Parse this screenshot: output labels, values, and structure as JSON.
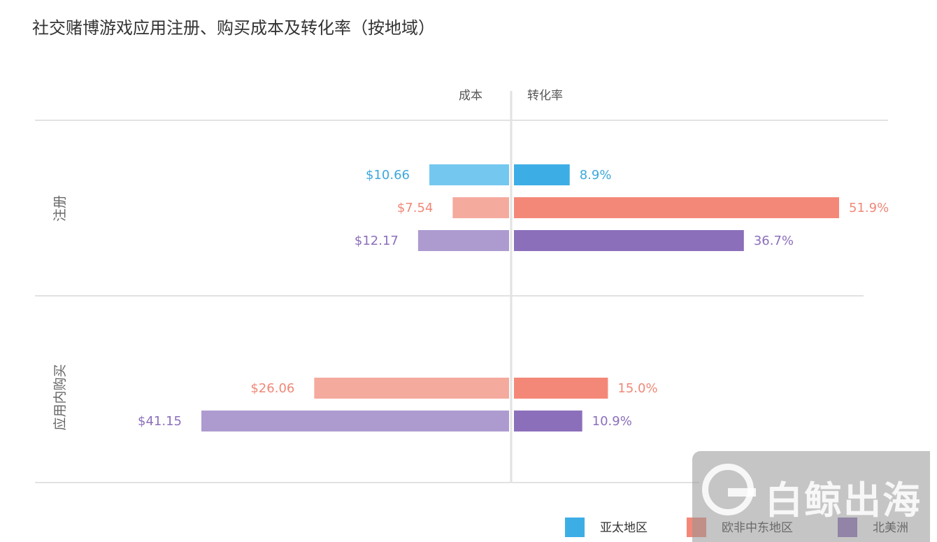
{
  "chart_data": {
    "type": "bar",
    "title": "社交赌博游戏应用注册、购买成本及转化率（按地域）",
    "left_header": "成本",
    "right_header": "转化率",
    "groups": [
      {
        "name": "注册",
        "bars": [
          {
            "region": "亚太地区",
            "cost": 10.66,
            "cost_label": "$10.66",
            "rate": 8.9,
            "rate_label": "8.9%"
          },
          {
            "region": "欧非中东地区",
            "cost": 7.54,
            "cost_label": "$7.54",
            "rate": 51.9,
            "rate_label": "51.9%"
          },
          {
            "region": "北美洲",
            "cost": 12.17,
            "cost_label": "$12.17",
            "rate": 36.7,
            "rate_label": "36.7%"
          }
        ]
      },
      {
        "name": "应用内购买",
        "bars": [
          {
            "region": "欧非中东地区",
            "cost": 26.06,
            "cost_label": "$26.06",
            "rate": 15.0,
            "rate_label": "15.0%"
          },
          {
            "region": "北美洲",
            "cost": 41.15,
            "cost_label": "$41.15",
            "rate": 10.9,
            "rate_label": "10.9%"
          }
        ]
      }
    ],
    "cost_axis_max": 41.15,
    "rate_axis_max": 51.9,
    "legend": [
      "亚太地区",
      "欧非中东地区",
      "北美洲"
    ],
    "legend_position": "bottom-right",
    "colors": {
      "亚太地区": {
        "dark": "#3daee5",
        "light": "#74c7ee",
        "text": "#3da8dc"
      },
      "欧非中东地区": {
        "dark": "#f48878",
        "light": "#f5aa9e",
        "text": "#f08878"
      },
      "北美洲": {
        "dark": "#8c6fbb",
        "light": "#ad9bd0",
        "text": "#8c6fbb"
      }
    }
  },
  "watermark": {
    "text": "白鲸出海"
  }
}
